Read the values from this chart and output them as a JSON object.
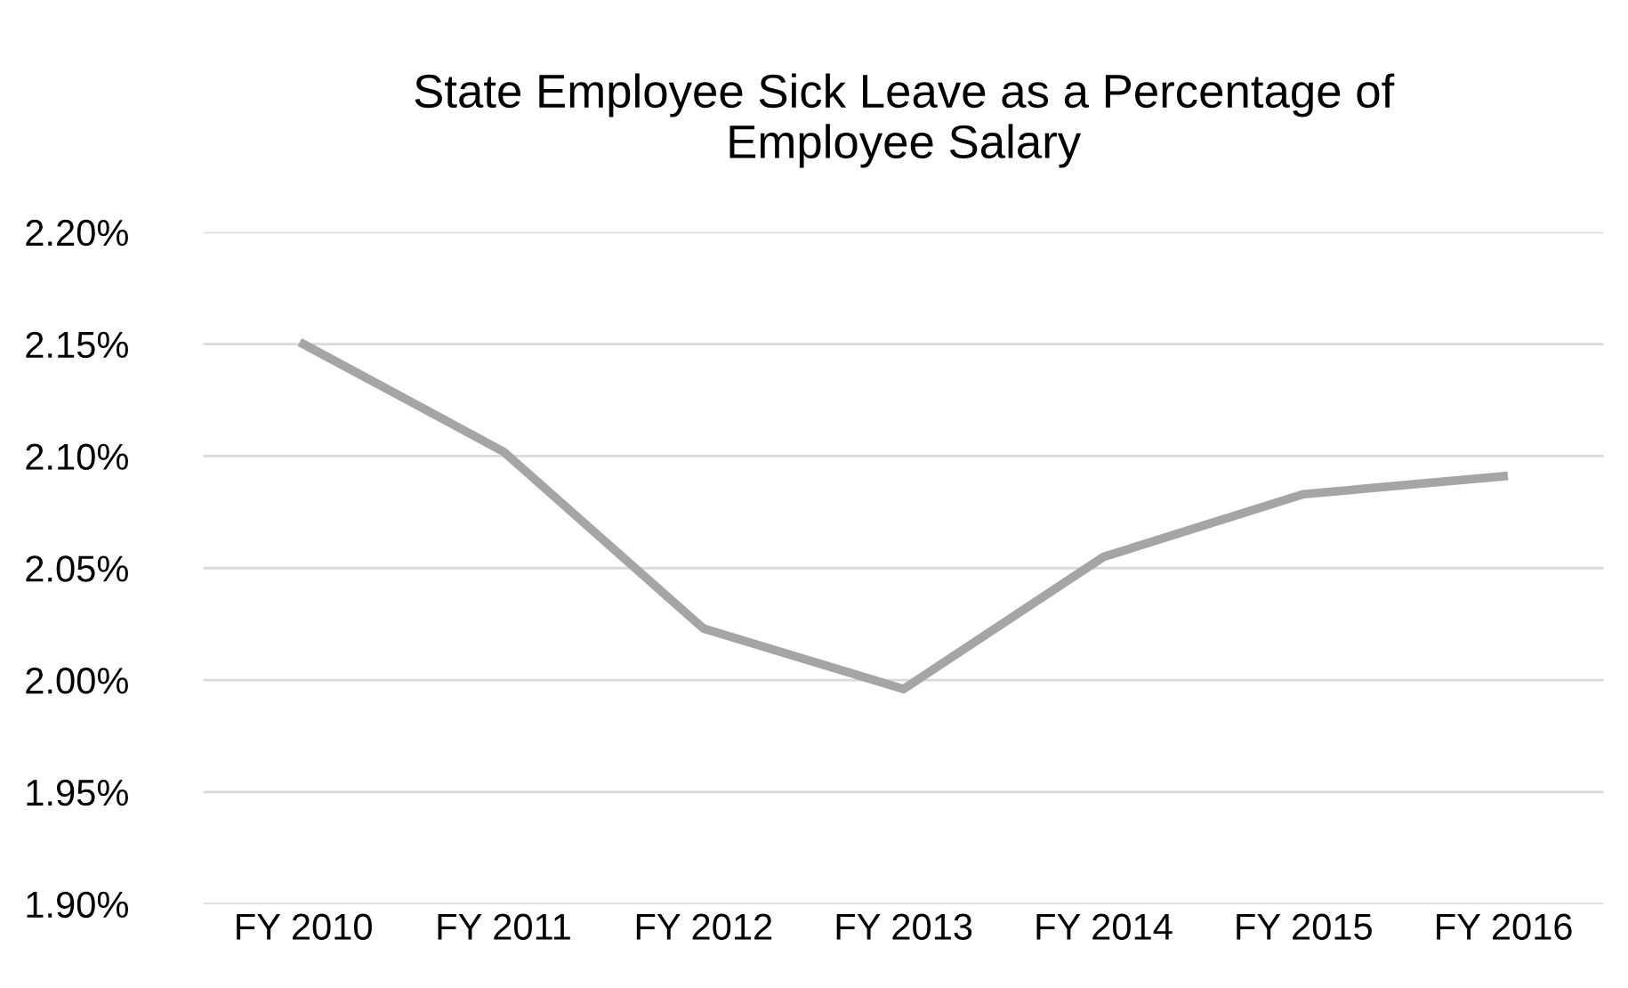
{
  "chart_data": {
    "type": "line",
    "title": "State Employee Sick Leave as a Percentage of\nEmployee Salary",
    "categories": [
      "FY 2010",
      "FY 2011",
      "FY 2012",
      "FY 2013",
      "FY 2014",
      "FY 2015",
      "FY 2016"
    ],
    "series": [
      {
        "color": "#a5a5a5",
        "values": [
          2.15,
          2.102,
          2.023,
          1.996,
          2.055,
          2.083,
          2.091
        ]
      }
    ],
    "ylim": [
      1.9,
      2.2
    ],
    "yticks": [
      {
        "value": 1.9,
        "label": "1.90%"
      },
      {
        "value": 1.95,
        "label": "1.95%"
      },
      {
        "value": 2.0,
        "label": "2.00%"
      },
      {
        "value": 2.05,
        "label": "2.05%"
      },
      {
        "value": 2.1,
        "label": "2.10%"
      },
      {
        "value": 2.15,
        "label": "2.15%"
      },
      {
        "value": 2.2,
        "label": "2.20%"
      }
    ],
    "grid": "y",
    "marker": "none",
    "line_style": "solid"
  }
}
